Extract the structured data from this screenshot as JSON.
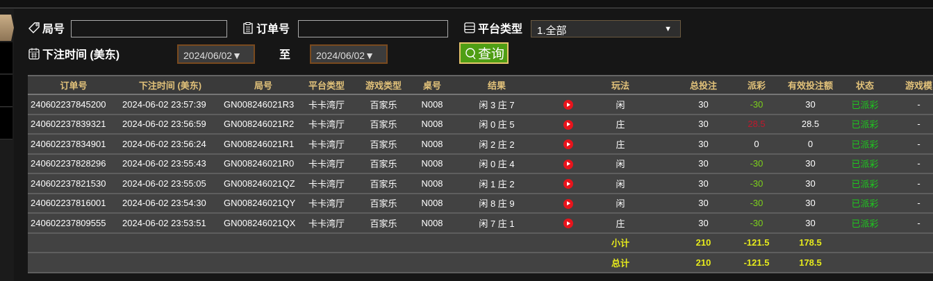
{
  "filters": {
    "round_label": "局号",
    "round_value": "",
    "order_label": "订单号",
    "order_value": "",
    "platform_label": "平台类型",
    "platform_value": "1.全部",
    "time_label": "下注时间 (美东)",
    "date_from": "2024/06/02▼",
    "to_label": "至",
    "date_to": "2024/06/02▼",
    "query_label": "查询"
  },
  "table": {
    "headers": [
      "订单号",
      "下注时间 (美东)",
      "局号",
      "平台类型",
      "游戏类型",
      "桌号",
      "结果",
      "",
      "玩法",
      "",
      "总投注",
      "派彩",
      "有效投注额",
      "状态",
      "游戏模"
    ],
    "rows": [
      [
        "240602237845200",
        "2024-06-02 23:57:39",
        "GN008246021R3",
        "卡卡湾厅",
        "百家乐",
        "N008",
        "闲 3 庄 7",
        "闲",
        "30",
        "-30",
        "30",
        "已派彩",
        "-"
      ],
      [
        "240602237839321",
        "2024-06-02 23:56:59",
        "GN008246021R2",
        "卡卡湾厅",
        "百家乐",
        "N008",
        "闲 0 庄 5",
        "庄",
        "30",
        "28.5",
        "28.5",
        "已派彩",
        "-"
      ],
      [
        "240602237834901",
        "2024-06-02 23:56:24",
        "GN008246021R1",
        "卡卡湾厅",
        "百家乐",
        "N008",
        "闲 2 庄 2",
        "庄",
        "30",
        "0",
        "0",
        "已派彩",
        "-"
      ],
      [
        "240602237828296",
        "2024-06-02 23:55:43",
        "GN008246021R0",
        "卡卡湾厅",
        "百家乐",
        "N008",
        "闲 0 庄 4",
        "闲",
        "30",
        "-30",
        "30",
        "已派彩",
        "-"
      ],
      [
        "240602237821530",
        "2024-06-02 23:55:05",
        "GN008246021QZ",
        "卡卡湾厅",
        "百家乐",
        "N008",
        "闲 1 庄 2",
        "闲",
        "30",
        "-30",
        "30",
        "已派彩",
        "-"
      ],
      [
        "240602237816001",
        "2024-06-02 23:54:30",
        "GN008246021QY",
        "卡卡湾厅",
        "百家乐",
        "N008",
        "闲 8 庄 9",
        "闲",
        "30",
        "-30",
        "30",
        "已派彩",
        "-"
      ],
      [
        "240602237809555",
        "2024-06-02 23:53:51",
        "GN008246021QX",
        "卡卡湾厅",
        "百家乐",
        "N008",
        "闲 7 庄 1",
        "庄",
        "30",
        "-30",
        "30",
        "已派彩",
        "-"
      ]
    ],
    "subtotal": {
      "label": "小计",
      "total_bet": "210",
      "payout": "-121.5",
      "valid_bet": "178.5"
    },
    "total": {
      "label": "总计",
      "total_bet": "210",
      "payout": "-121.5",
      "valid_bet": "178.5"
    }
  },
  "colors": {
    "header_text": "#e2c27a",
    "loss": "#7cd11a",
    "win": "#c0182c",
    "status": "#1ec81e",
    "summary": "#e6ea1c",
    "query_button": "#4f9e14"
  },
  "icons": [
    "tag-icon",
    "clipboard-icon",
    "list-icon",
    "calendar-icon",
    "search-icon",
    "play-video-icon"
  ]
}
